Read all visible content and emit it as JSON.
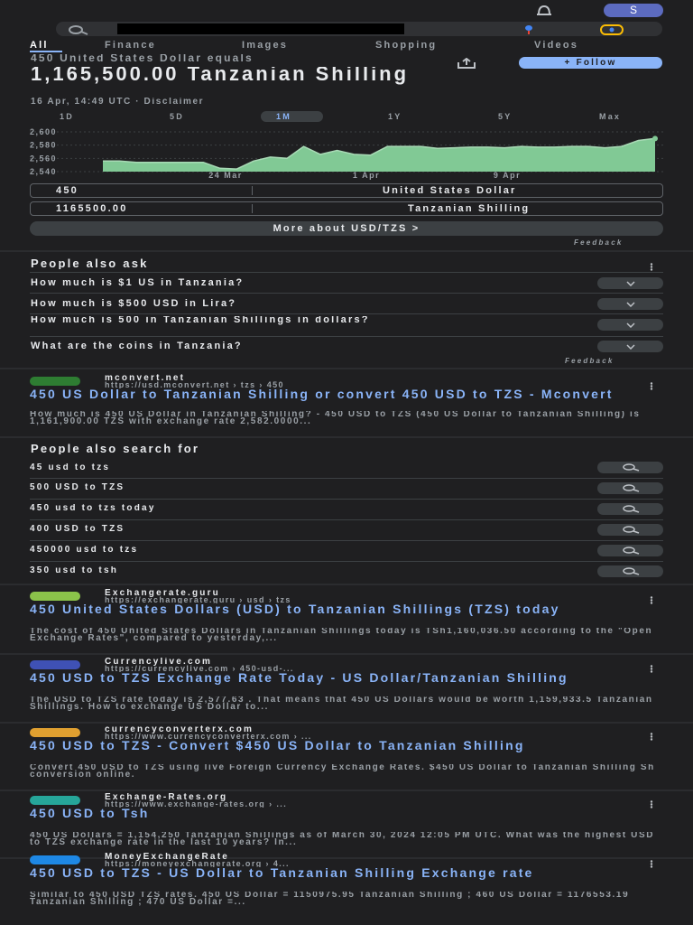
{
  "topbar": {
    "avatar_letter": "S"
  },
  "tabs": [
    "All",
    "Finance",
    "Images",
    "Shopping",
    "Videos"
  ],
  "converter": {
    "subtitle": "450 United States Dollar equals",
    "amount": "1,165,500.00 Tanzanian Shilling",
    "date": "16 Apr, 14:49 UTC · Disclaimer",
    "follow": "+ Follow",
    "ranges": [
      "1D",
      "5D",
      "1M",
      "1Y",
      "5Y",
      "Max"
    ],
    "active_range": "1M",
    "from_value": "450",
    "from_currency": "United States Dollar",
    "to_value": "1165500.00",
    "to_currency": "Tanzanian Shilling",
    "more": "More about USD/TZS  >",
    "feedback": "Feedback"
  },
  "chart_data": {
    "type": "area",
    "y_ticks": [
      "2,600",
      "2,580",
      "2,560",
      "2,540"
    ],
    "x_ticks": [
      "24 Mar",
      "1 Apr",
      "9 Apr"
    ],
    "ylim": [
      2540,
      2600
    ],
    "values": [
      2556,
      2556,
      2554,
      2554,
      2554,
      2554,
      2554,
      2545,
      2544,
      2556,
      2562,
      2560,
      2578,
      2566,
      2572,
      2566,
      2565,
      2578,
      2578,
      2578,
      2575,
      2576,
      2577,
      2577,
      2576,
      2578,
      2577,
      2577,
      2578,
      2578,
      2576,
      2578,
      2587,
      2590
    ],
    "color": "#81c995"
  },
  "paa": {
    "title": "People also ask",
    "questions": [
      "How much is $1 US in Tanzania?",
      "How much is $500 USD in Lira?",
      "How much is 500 in Tanzanian Shillings in dollars?",
      "What are the coins in Tanzania?"
    ],
    "feedback": "Feedback"
  },
  "result1": {
    "site": "mconvert.net",
    "url": "https://usd.mconvert.net › tzs › 450",
    "title": "450 US Dollar to Tanzanian Shilling or convert 450 USD to TZS - Mconvert",
    "snippet": "How much is 450 US Dollar in Tanzanian Shilling? - 450 USD to TZS (450 US Dollar to Tanzanian Shilling) is 1,161,900.00 TZS with exchange rate 2,582.0000..."
  },
  "pasf": {
    "title": "People also search for",
    "items": [
      "45 usd to tzs",
      "500 USD to TZS",
      "450 usd to tzs today",
      "400 USD to TZS",
      "450000 usd to tzs",
      "350 usd to tsh"
    ]
  },
  "results": [
    {
      "site": "Exchangerate.guru",
      "url": "https://exchangerate.guru › usd › tzs",
      "title": "450 United States Dollars (USD) to Tanzanian Shillings (TZS) today",
      "snippet": "The cost of 450 United States Dollars in Tanzanian Shillings today is TSh1,160,036.50 according to the \"Open Exchange Rates\", compared to yesterday,...",
      "fav": "#8bc34a"
    },
    {
      "site": "Currencylive.com",
      "url": "https://currencylive.com › 450-usd-...",
      "title": "450 USD to TZS Exchange Rate Today - US Dollar/Tanzanian Shilling",
      "snippet": "The USD to TZS rate today is 2,577.63 . That means that 450 US Dollars would be worth 1,159,933.5 Tanzanian Shillings. How to exchange US Dollar to...",
      "fav": "#3f51b5"
    },
    {
      "site": "currencyconverterx.com",
      "url": "https://www.currencyconverterx.com › ...",
      "title": "450 USD to TZS - Convert $450 US Dollar to Tanzanian Shilling",
      "snippet": "Convert 450 USD to TZS using live Foreign Currency Exchange Rates. $450 US Dollar to Tanzanian Shilling Sh conversion online.",
      "fav": "#e0a030"
    },
    {
      "site": "Exchange-Rates.org",
      "url": "https://www.exchange-rates.org › ...",
      "title": "450 USD to Tsh",
      "snippet": "450 US Dollars = 1,154,250 Tanzanian Shillings as of March 30, 2024 12:05 PM UTC. What was the highest USD to TZS exchange rate in the last 10 years? In...",
      "fav": "#26a69a"
    },
    {
      "site": "MoneyExchangeRate",
      "url": "https://moneyexchangerate.org › 4...",
      "title": "450 USD to TZS - US Dollar to Tanzanian Shilling Exchange rate",
      "snippet": "Similar to 450 USD TZS rates. 450 US Dollar = 1150975.95 Tanzanian Shilling ; 460 US Dollar = 1176553.19 Tanzanian Shilling ; 470 US Dollar =...",
      "fav": "#1e88e5"
    }
  ]
}
